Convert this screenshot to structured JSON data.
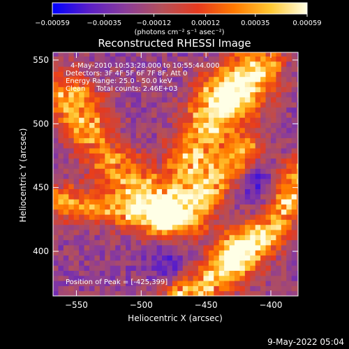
{
  "chart_data": {
    "type": "heatmap",
    "title": "Reconstructed RHESSI Image",
    "xlabel": "Heliocentric X (arcsec)",
    "ylabel": "Heliocentric Y (arcsec)",
    "xlim": [
      -568,
      -379
    ],
    "ylim": [
      365,
      556
    ],
    "x_ticks": [
      -550,
      -500,
      -450,
      -400
    ],
    "x_tick_labels": [
      "−550",
      "−500",
      "−450",
      "−400"
    ],
    "y_ticks": [
      400,
      450,
      500,
      550
    ],
    "y_tick_labels": [
      "400",
      "450",
      "500",
      "550"
    ],
    "colorbar": {
      "range": [
        -0.00059,
        0.00059
      ],
      "ticks": [
        -0.00059,
        -0.00035,
        -0.00012,
        0.00012,
        0.00035,
        0.00059
      ],
      "tick_labels": [
        "−0.00059",
        "−0.00035",
        "−0.00012",
        "0.00012",
        "0.00035",
        "0.00059"
      ],
      "units_label": "(photons cm⁻² s⁻¹ asec⁻²)",
      "colors": [
        "#0000ff",
        "#5a1ec8",
        "#8a3c9a",
        "#b4505a",
        "#e63a1e",
        "#ff7a00",
        "#ffc832",
        "#ffffe6"
      ]
    },
    "annotations": [
      "4-May-2010 10:53:28.000 to 10:55:44.000",
      "Detectors: 3F 4F 5F 6F 7F 8F, Att 0",
      "Energy Range: 25.0 - 50.0 keV",
      "Clean     Total counts: 2.46E+03",
      "Position of Peak = [-425,399]"
    ],
    "date_stamp": "9-May-2022 05:04",
    "grid": false,
    "intensity_structure": [
      {
        "name": "upper-band",
        "ridge": [
          [
            -555,
            520
          ],
          [
            -520,
            470
          ],
          [
            -480,
            430
          ],
          [
            -440,
            520
          ],
          [
            -410,
            545
          ]
        ],
        "peak_x": -425,
        "peak_y": 520
      },
      {
        "name": "middle-band",
        "ridge": [
          [
            -568,
            440
          ],
          [
            -500,
            430
          ],
          [
            -460,
            430
          ],
          [
            -420,
            480
          ]
        ]
      },
      {
        "name": "lower-band",
        "ridge": [
          [
            -470,
            365
          ],
          [
            -440,
            380
          ],
          [
            -425,
            399
          ],
          [
            -395,
            420
          ],
          [
            -380,
            460
          ]
        ],
        "peak_x": -425,
        "peak_y": 399
      }
    ]
  }
}
